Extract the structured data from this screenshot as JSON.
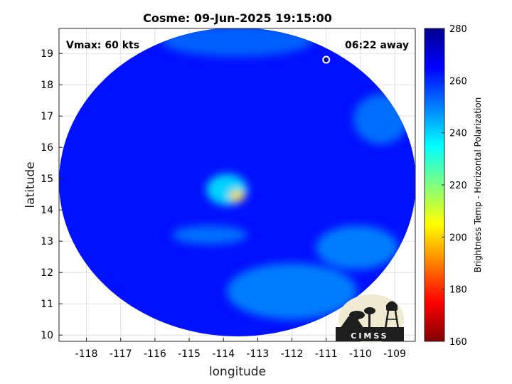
{
  "chart_data": {
    "type": "heatmap",
    "title": "Cosme: 09-Jun-2025 19:15:00",
    "xlabel": "longitude",
    "ylabel": "latitude",
    "xlim": [
      -118.8,
      -108.4
    ],
    "ylim": [
      9.8,
      19.8
    ],
    "xticks": [
      -118,
      -117,
      -116,
      -115,
      -114,
      -113,
      -112,
      -111,
      -110,
      -109
    ],
    "yticks": [
      10,
      11,
      12,
      13,
      14,
      15,
      16,
      17,
      18,
      19
    ],
    "grid": true,
    "annotations": {
      "vmax": "Vmax: 60 kts",
      "time_away": "06:22 away"
    },
    "storm_symbol_position": {
      "lon": -111.0,
      "lat": 18.8
    },
    "colorbar": {
      "label": "Brightness Temp - Horizontal Polarization",
      "range": [
        160,
        280
      ],
      "ticks": [
        160,
        180,
        200,
        220,
        240,
        260,
        280
      ],
      "colormap": "jet"
    },
    "swath_background_value": 263,
    "features": [
      {
        "type": "eye_core",
        "lon": -113.6,
        "lat": 14.45,
        "spread_lon": 0.22,
        "spread_lat": 0.18,
        "value": 201
      },
      {
        "type": "core_band",
        "lon": -113.9,
        "lat": 14.65,
        "spread_lon": 0.6,
        "spread_lat": 0.5,
        "value": 236
      },
      {
        "type": "rainband",
        "lon": -112.0,
        "lat": 11.4,
        "spread_lon": 1.9,
        "spread_lat": 0.9,
        "value": 248
      },
      {
        "type": "rainband",
        "lon": -110.1,
        "lat": 12.8,
        "spread_lon": 1.2,
        "spread_lat": 0.7,
        "value": 248
      },
      {
        "type": "rainband",
        "lon": -109.4,
        "lat": 16.9,
        "spread_lon": 0.8,
        "spread_lat": 0.8,
        "value": 250
      },
      {
        "type": "rainband",
        "lon": -114.4,
        "lat": 13.2,
        "spread_lon": 1.1,
        "spread_lat": 0.3,
        "value": 250
      },
      {
        "type": "north_edge",
        "lon": -113.6,
        "lat": 19.4,
        "spread_lon": 2.2,
        "spread_lat": 0.5,
        "value": 252
      }
    ]
  },
  "logo": {
    "text": "CIMSS"
  }
}
